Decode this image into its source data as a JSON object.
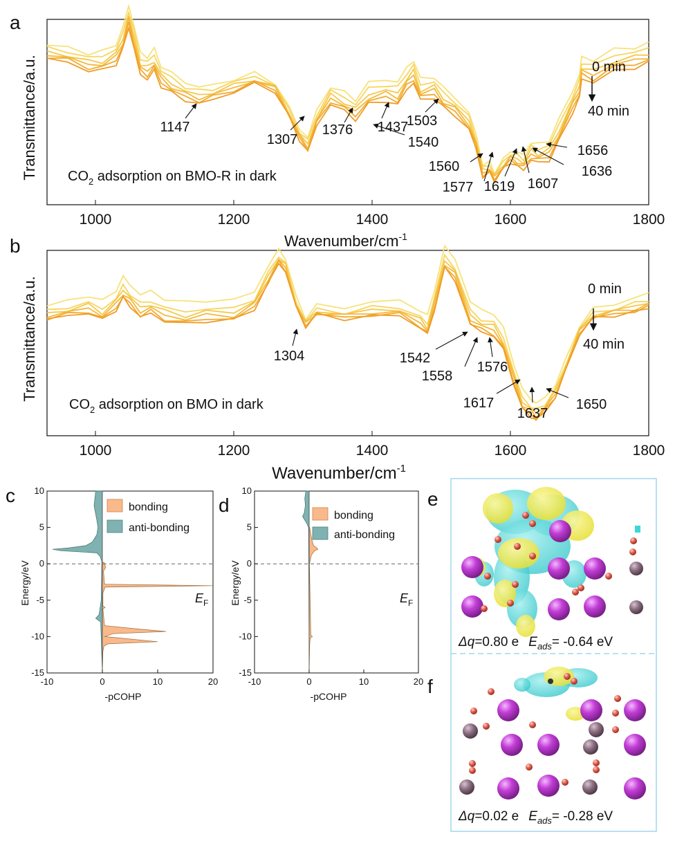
{
  "panels": {
    "a": {
      "letter": "a",
      "ylabel": "Transmittance/a.u.",
      "xlabel": "Wavenumber/cm",
      "xlabel_sup": "-1",
      "caption_pre": "CO",
      "caption_sub": "2",
      "caption_post": " adsorption on BMO-R in dark",
      "time_start": "0 min",
      "time_end": "40 min",
      "xticks": [
        "1000",
        "1200",
        "1400",
        "1600",
        "1800"
      ],
      "peaks": [
        "1147",
        "1307",
        "1376",
        "1437",
        "1503",
        "1540",
        "1560",
        "1577",
        "1619",
        "1607",
        "1636",
        "1656"
      ]
    },
    "b": {
      "letter": "b",
      "ylabel": "Transmittance/a.u.",
      "xlabel": "Wavenumber/cm",
      "xlabel_sup": "-1",
      "caption_pre": "CO",
      "caption_sub": "2",
      "caption_post": " adsorption on BMO in dark",
      "time_start": "0 min",
      "time_end": "40 min",
      "xticks": [
        "1000",
        "1200",
        "1400",
        "1600",
        "1800"
      ],
      "peaks": [
        "1304",
        "1542",
        "1558",
        "1576",
        "1617",
        "1637",
        "1650"
      ]
    },
    "c": {
      "letter": "c",
      "ylabel": "Energy/eV",
      "xlabel": "-pCOHP",
      "legend_bonding": "bonding",
      "legend_antibonding": "anti-bonding",
      "fermi_main": "E",
      "fermi_sub": "F",
      "yticks": [
        "10",
        "5",
        "0",
        "-5",
        "-10",
        "-15"
      ],
      "xticks": [
        "-10",
        "0",
        "10",
        "20"
      ]
    },
    "d": {
      "letter": "d",
      "ylabel": "Energy/eV",
      "xlabel": "-pCOHP",
      "legend_bonding": "bonding",
      "legend_antibonding": "anti-bonding",
      "fermi_main": "E",
      "fermi_sub": "F",
      "yticks": [
        "10",
        "5",
        "0",
        "-5",
        "-10",
        "-15"
      ],
      "xticks": [
        "-10",
        "0",
        "10",
        "20"
      ]
    },
    "e": {
      "letter": "e",
      "dq_label": "Δq",
      "dq_value": "=0.80 e",
      "eads_main": "E",
      "eads_sub": "ads",
      "eads_value": "= -0.64 eV"
    },
    "f": {
      "letter": "f",
      "dq_label": "Δq",
      "dq_value": "=0.02 e",
      "eads_main": "E",
      "eads_sub": "ads",
      "eads_value": "= -0.28 eV"
    }
  },
  "colors": {
    "series": [
      "#f7e27a",
      "#f6d55e",
      "#f5c74a",
      "#f4b83a",
      "#f2aa30",
      "#ef9c28"
    ],
    "bonding": "#f9b98a",
    "antibonding": "#7fb2b0",
    "frame_ef": "#9fd7ee",
    "bi_atom": "#c23ed6",
    "mo_atom": "#8a6f80",
    "o_atom": "#e06050",
    "density_yellow": "#f2ee52",
    "density_cyan": "#3fd6d6"
  },
  "chart_data": [
    {
      "panel": "a",
      "type": "line",
      "xlabel": "Wavenumber/cm-1",
      "ylabel": "Transmittance/a.u.",
      "xlim": [
        930,
        1800
      ],
      "series_count": 6,
      "time_range": [
        "0 min",
        "40 min"
      ],
      "x": [
        930,
        960,
        990,
        1010,
        1030,
        1040,
        1048,
        1056,
        1065,
        1075,
        1085,
        1095,
        1110,
        1130,
        1150,
        1170,
        1200,
        1230,
        1260,
        1280,
        1295,
        1307,
        1320,
        1340,
        1360,
        1376,
        1395,
        1420,
        1437,
        1450,
        1460,
        1470,
        1490,
        1503,
        1520,
        1540,
        1550,
        1560,
        1570,
        1577,
        1590,
        1600,
        1610,
        1619,
        1630,
        1640,
        1656,
        1670,
        1690,
        1700,
        1703,
        1720,
        1750,
        1780,
        1800
      ],
      "y_base": [
        0.8,
        0.78,
        0.74,
        0.74,
        0.78,
        0.86,
        0.98,
        0.86,
        0.72,
        0.7,
        0.74,
        0.66,
        0.62,
        0.58,
        0.56,
        0.58,
        0.62,
        0.66,
        0.62,
        0.48,
        0.36,
        0.3,
        0.44,
        0.56,
        0.52,
        0.48,
        0.56,
        0.58,
        0.56,
        0.64,
        0.68,
        0.58,
        0.6,
        0.54,
        0.5,
        0.42,
        0.32,
        0.16,
        0.18,
        0.14,
        0.2,
        0.24,
        0.22,
        0.2,
        0.26,
        0.24,
        0.26,
        0.36,
        0.52,
        0.6,
        0.7,
        0.68,
        0.74,
        0.76,
        0.78
      ],
      "offsets": [
        0.1,
        0.07,
        0.04,
        0.02,
        0.0,
        -0.02
      ],
      "peak_labels": [
        1147,
        1307,
        1376,
        1437,
        1503,
        1540,
        1560,
        1577,
        1619,
        1607,
        1636,
        1656
      ]
    },
    {
      "panel": "b",
      "type": "line",
      "xlabel": "Wavenumber/cm-1",
      "ylabel": "Transmittance/a.u.",
      "xlim": [
        930,
        1800
      ],
      "series_count": 6,
      "time_range": [
        "0 min",
        "40 min"
      ],
      "x": [
        930,
        960,
        990,
        1010,
        1030,
        1040,
        1050,
        1065,
        1080,
        1100,
        1130,
        1160,
        1200,
        1230,
        1250,
        1265,
        1275,
        1290,
        1304,
        1320,
        1360,
        1400,
        1440,
        1470,
        1480,
        1490,
        1505,
        1520,
        1542,
        1558,
        1576,
        1590,
        1605,
        1617,
        1630,
        1637,
        1650,
        1665,
        1680,
        1700,
        1720,
        1750,
        1780,
        1800
      ],
      "y_base": [
        0.64,
        0.66,
        0.68,
        0.64,
        0.7,
        0.76,
        0.72,
        0.66,
        0.68,
        0.64,
        0.62,
        0.64,
        0.64,
        0.7,
        0.84,
        0.94,
        0.9,
        0.7,
        0.6,
        0.66,
        0.64,
        0.66,
        0.66,
        0.6,
        0.56,
        0.7,
        0.92,
        0.86,
        0.62,
        0.58,
        0.56,
        0.48,
        0.3,
        0.16,
        0.12,
        0.1,
        0.14,
        0.22,
        0.36,
        0.56,
        0.64,
        0.66,
        0.68,
        0.7
      ],
      "offsets": [
        0.1,
        0.05,
        0.03,
        0.01,
        -0.01,
        -0.02
      ],
      "peak_labels": [
        1304,
        1542,
        1558,
        1576,
        1617,
        1637,
        1650
      ]
    },
    {
      "panel": "c",
      "type": "area",
      "xlabel": "-pCOHP",
      "ylabel": "Energy/eV",
      "xlim": [
        -10,
        20
      ],
      "ylim": [
        -15,
        10
      ],
      "series": [
        {
          "name": "anti-bonding",
          "energy": [
            10,
            8,
            6,
            5,
            4,
            3,
            2.5,
            2.2,
            2.0,
            1.8,
            1.5,
            1,
            0.3,
            -5,
            -7,
            -7.5,
            -8,
            -15
          ],
          "value": [
            -1.2,
            -1.5,
            -1.0,
            -0.8,
            -1.0,
            -1.8,
            -3.0,
            -6.0,
            -9.0,
            -7.5,
            -1.0,
            -0.4,
            -0.1,
            -0.2,
            -0.6,
            -1.2,
            -0.3,
            0
          ]
        },
        {
          "name": "bonding",
          "energy": [
            0.2,
            -0.5,
            -1,
            -2.8,
            -3,
            -3.2,
            -4,
            -5.8,
            -6,
            -6.2,
            -8.5,
            -9,
            -9.3,
            -9.6,
            -10,
            -10.7,
            -11,
            -11.3,
            -12,
            -15
          ],
          "value": [
            0.3,
            0.6,
            0.2,
            0.4,
            20,
            0.5,
            0.1,
            0.1,
            0.5,
            0.1,
            0.4,
            7,
            11.5,
            2,
            0.4,
            10,
            1,
            0.3,
            0.1,
            0
          ]
        }
      ],
      "fermi_level": 0
    },
    {
      "panel": "d",
      "type": "area",
      "xlabel": "-pCOHP",
      "ylabel": "Energy/eV",
      "xlim": [
        -10,
        20
      ],
      "ylim": [
        -15,
        10
      ],
      "series": [
        {
          "name": "anti-bonding",
          "energy": [
            10,
            9,
            8,
            7,
            6.5,
            6,
            5.5,
            5,
            -15
          ],
          "value": [
            -0.6,
            -0.8,
            -0.7,
            -0.9,
            -1.2,
            -0.8,
            -0.4,
            -0.1,
            0
          ]
        },
        {
          "name": "bonding",
          "energy": [
            5,
            4,
            3,
            2.5,
            2.2,
            2.0,
            1.8,
            1.2,
            0.5,
            0,
            -9.8,
            -10,
            -10.2,
            -11,
            -15
          ],
          "value": [
            0.1,
            0.3,
            0.6,
            0.8,
            1.4,
            1.6,
            1.0,
            0.4,
            0.2,
            0.05,
            0.3,
            0.6,
            0.2,
            0.1,
            0
          ]
        }
      ],
      "fermi_level": 0
    }
  ]
}
